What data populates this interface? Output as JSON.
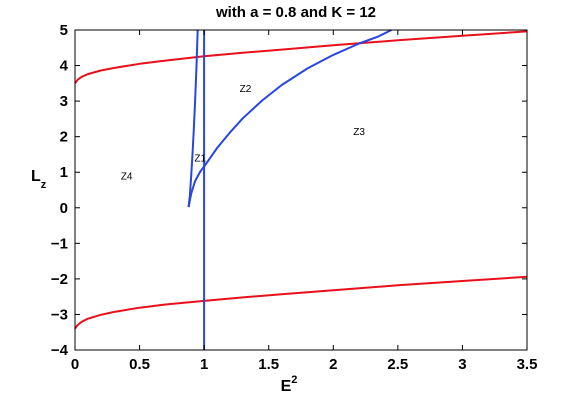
{
  "chart_data": {
    "type": "line",
    "title": "with a = 0.8 and K = 12",
    "xlabel": {
      "base": "E",
      "sup": "2"
    },
    "ylabel": {
      "base": "L",
      "sub": "z"
    },
    "xlim": [
      0,
      3.5
    ],
    "ylim": [
      -4,
      5
    ],
    "xticks": [
      0,
      0.5,
      1,
      1.5,
      2,
      2.5,
      3,
      3.5
    ],
    "xtick_labels": [
      "0",
      "0.5",
      "1",
      "1.5",
      "2",
      "2.5",
      "3",
      "3.5"
    ],
    "yticks": [
      -4,
      -3,
      -2,
      -1,
      0,
      1,
      2,
      3,
      4,
      5
    ],
    "ytick_labels": [
      "−4",
      "−3",
      "−2",
      "−1",
      "0",
      "1",
      "2",
      "3",
      "4",
      "5"
    ],
    "grid": false,
    "series": [
      {
        "color": "#e8101a",
        "points": [
          [
            0,
            3.5
          ],
          [
            0.02,
            3.6
          ],
          [
            0.05,
            3.68
          ],
          [
            0.1,
            3.76
          ],
          [
            0.2,
            3.86
          ],
          [
            0.3,
            3.93
          ],
          [
            0.5,
            4.05
          ],
          [
            0.7,
            4.14
          ],
          [
            1.0,
            4.26
          ],
          [
            1.3,
            4.36
          ],
          [
            1.6,
            4.45
          ],
          [
            2.0,
            4.57
          ],
          [
            2.25,
            4.64
          ],
          [
            2.5,
            4.71
          ],
          [
            3.0,
            4.84
          ],
          [
            3.5,
            4.96
          ]
        ]
      },
      {
        "color": "#e8101a",
        "points": [
          [
            0,
            -3.4
          ],
          [
            0.02,
            -3.3
          ],
          [
            0.05,
            -3.21
          ],
          [
            0.1,
            -3.12
          ],
          [
            0.2,
            -3.01
          ],
          [
            0.3,
            -2.93
          ],
          [
            0.5,
            -2.81
          ],
          [
            0.7,
            -2.72
          ],
          [
            1.0,
            -2.62
          ],
          [
            1.3,
            -2.52
          ],
          [
            1.6,
            -2.43
          ],
          [
            2.0,
            -2.32
          ],
          [
            2.5,
            -2.18
          ],
          [
            3.0,
            -2.06
          ],
          [
            3.5,
            -1.94
          ]
        ]
      },
      {
        "color": "#2846e0",
        "points": [
          [
            0.88,
            0.02
          ],
          [
            0.89,
            0.35
          ],
          [
            0.9,
            0.9
          ],
          [
            0.91,
            1.5
          ],
          [
            0.92,
            2.2
          ],
          [
            0.93,
            3.0
          ],
          [
            0.94,
            3.9
          ],
          [
            0.95,
            5.0
          ]
        ]
      },
      {
        "color": "#2846e0",
        "points": [
          [
            0.88,
            0.02
          ],
          [
            0.9,
            0.4
          ],
          [
            0.93,
            0.75
          ],
          [
            0.97,
            1.02
          ],
          [
            1.0,
            1.16
          ],
          [
            1.05,
            1.42
          ],
          [
            1.1,
            1.68
          ],
          [
            1.2,
            2.12
          ],
          [
            1.3,
            2.52
          ],
          [
            1.45,
            3.02
          ],
          [
            1.6,
            3.45
          ],
          [
            1.8,
            3.92
          ],
          [
            2.0,
            4.3
          ],
          [
            2.2,
            4.62
          ],
          [
            2.35,
            4.82
          ],
          [
            2.45,
            5.0
          ]
        ]
      },
      {
        "color": "#2846e0",
        "points": [
          [
            1.0,
            -4.0
          ],
          [
            1.0,
            5.0
          ]
        ]
      }
    ],
    "annotations": [
      {
        "text": "Z4",
        "x": 0.4,
        "y": 0.8
      },
      {
        "text": "Z1",
        "x": 0.97,
        "y": 1.3
      },
      {
        "text": "Z2",
        "x": 1.32,
        "y": 3.25
      },
      {
        "text": "Z3",
        "x": 2.2,
        "y": 2.05
      }
    ]
  }
}
